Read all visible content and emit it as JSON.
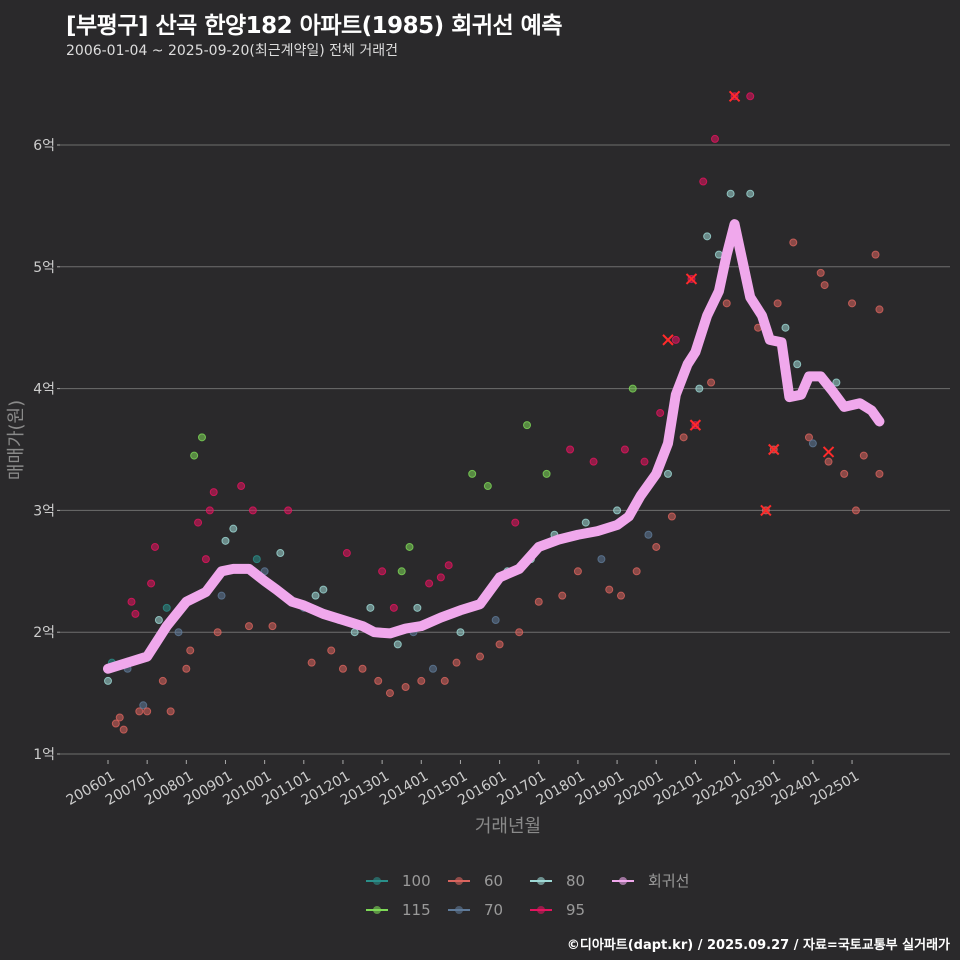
{
  "header": {
    "title": "[부평구] 산곡 한양182 아파트(1985) 회귀선 예측",
    "subtitle": "2006-01-04 ~ 2025-09-20(최근계약일) 전체 거래건"
  },
  "footer": "©디아파트(dapt.kr) / 2025.09.27 / 자료=국토교통부 실거래가",
  "chart_data": {
    "type": "scatter",
    "title": "[부평구] 산곡 한양182 아파트(1985) 회귀선 예측",
    "xlabel": "거래년월",
    "ylabel": "매매가(원)",
    "ylim": [
      1,
      6.6
    ],
    "xlim": [
      2005.6,
      2027.4
    ],
    "yticks": [
      {
        "v": 1,
        "label": "1억"
      },
      {
        "v": 2,
        "label": "2억"
      },
      {
        "v": 3,
        "label": "3억"
      },
      {
        "v": 4,
        "label": "4억"
      },
      {
        "v": 5,
        "label": "5억"
      },
      {
        "v": 6,
        "label": "6억"
      }
    ],
    "xticks": [
      "200601",
      "200701",
      "200801",
      "200901",
      "201001",
      "201101",
      "201201",
      "201301",
      "201401",
      "201501",
      "201601",
      "201701",
      "201801",
      "201901",
      "202001",
      "202101",
      "202201",
      "202301",
      "202401",
      "202501"
    ],
    "colors": {
      "100": "#2a8f8a",
      "115": "#7ed957",
      "60": "#d9645e",
      "70": "#5f7a99",
      "80": "#9ed9d6",
      "95": "#e3145f",
      "회귀선": "#f0a8ec"
    },
    "legend": [
      {
        "key": "100"
      },
      {
        "key": "60"
      },
      {
        "key": "80"
      },
      {
        "key": "회귀선"
      },
      {
        "key": "115"
      },
      {
        "key": "70"
      },
      {
        "key": "95"
      }
    ],
    "regression": [
      [
        2006.0,
        1.7
      ],
      [
        2006.5,
        1.75
      ],
      [
        2007.0,
        1.8
      ],
      [
        2007.2,
        1.9
      ],
      [
        2007.5,
        2.05
      ],
      [
        2008.0,
        2.25
      ],
      [
        2008.5,
        2.33
      ],
      [
        2008.9,
        2.5
      ],
      [
        2009.2,
        2.52
      ],
      [
        2009.6,
        2.52
      ],
      [
        2010.0,
        2.42
      ],
      [
        2010.3,
        2.35
      ],
      [
        2010.7,
        2.25
      ],
      [
        2011.0,
        2.22
      ],
      [
        2011.5,
        2.15
      ],
      [
        2012.0,
        2.1
      ],
      [
        2012.5,
        2.05
      ],
      [
        2012.8,
        2.0
      ],
      [
        2013.2,
        1.99
      ],
      [
        2013.6,
        2.03
      ],
      [
        2014.0,
        2.05
      ],
      [
        2014.5,
        2.12
      ],
      [
        2015.0,
        2.18
      ],
      [
        2015.5,
        2.23
      ],
      [
        2016.0,
        2.45
      ],
      [
        2016.5,
        2.52
      ],
      [
        2017.0,
        2.7
      ],
      [
        2017.5,
        2.76
      ],
      [
        2018.0,
        2.8
      ],
      [
        2018.5,
        2.83
      ],
      [
        2019.0,
        2.88
      ],
      [
        2019.3,
        2.95
      ],
      [
        2019.6,
        3.12
      ],
      [
        2020.0,
        3.3
      ],
      [
        2020.3,
        3.55
      ],
      [
        2020.5,
        3.95
      ],
      [
        2020.8,
        4.2
      ],
      [
        2021.0,
        4.3
      ],
      [
        2021.3,
        4.6
      ],
      [
        2021.6,
        4.8
      ],
      [
        2021.8,
        5.1
      ],
      [
        2022.0,
        5.35
      ],
      [
        2022.2,
        5.05
      ],
      [
        2022.4,
        4.75
      ],
      [
        2022.7,
        4.6
      ],
      [
        2022.9,
        4.4
      ],
      [
        2023.2,
        4.38
      ],
      [
        2023.4,
        3.93
      ],
      [
        2023.7,
        3.95
      ],
      [
        2023.9,
        4.1
      ],
      [
        2024.2,
        4.1
      ],
      [
        2024.5,
        3.98
      ],
      [
        2024.8,
        3.85
      ],
      [
        2025.2,
        3.88
      ],
      [
        2025.5,
        3.82
      ],
      [
        2025.7,
        3.73
      ]
    ],
    "points": [
      [
        2006.0,
        1.6,
        "80"
      ],
      [
        2006.1,
        1.75,
        "100"
      ],
      [
        2006.2,
        1.25,
        "60"
      ],
      [
        2006.3,
        1.3,
        "60"
      ],
      [
        2006.4,
        1.2,
        "60"
      ],
      [
        2006.5,
        1.7,
        "70"
      ],
      [
        2006.6,
        2.25,
        "95"
      ],
      [
        2006.7,
        2.15,
        "95"
      ],
      [
        2006.8,
        1.35,
        "60"
      ],
      [
        2006.9,
        1.4,
        "70"
      ],
      [
        2007.0,
        1.35,
        "60"
      ],
      [
        2007.1,
        2.4,
        "95"
      ],
      [
        2007.2,
        2.7,
        "95"
      ],
      [
        2007.3,
        2.1,
        "80"
      ],
      [
        2007.4,
        1.6,
        "60"
      ],
      [
        2007.5,
        2.2,
        "100"
      ],
      [
        2007.6,
        1.35,
        "60"
      ],
      [
        2007.8,
        2.0,
        "70"
      ],
      [
        2007.9,
        2.2,
        "80"
      ],
      [
        2008.0,
        1.7,
        "60"
      ],
      [
        2008.1,
        1.85,
        "60"
      ],
      [
        2008.2,
        3.45,
        "115"
      ],
      [
        2008.3,
        2.9,
        "95"
      ],
      [
        2008.4,
        3.6,
        "115"
      ],
      [
        2008.5,
        2.6,
        "95"
      ],
      [
        2008.6,
        3.0,
        "95"
      ],
      [
        2008.7,
        3.15,
        "95"
      ],
      [
        2008.8,
        2.0,
        "60"
      ],
      [
        2008.9,
        2.3,
        "70"
      ],
      [
        2009.0,
        2.75,
        "80"
      ],
      [
        2009.2,
        2.85,
        "80"
      ],
      [
        2009.4,
        3.2,
        "95"
      ],
      [
        2009.6,
        2.05,
        "60"
      ],
      [
        2009.7,
        3.0,
        "95"
      ],
      [
        2009.8,
        2.6,
        "100"
      ],
      [
        2010.0,
        2.5,
        "70"
      ],
      [
        2010.2,
        2.05,
        "60"
      ],
      [
        2010.4,
        2.65,
        "80"
      ],
      [
        2010.6,
        3.0,
        "95"
      ],
      [
        2011.0,
        2.2,
        "70"
      ],
      [
        2011.2,
        1.75,
        "60"
      ],
      [
        2011.3,
        2.3,
        "80"
      ],
      [
        2011.5,
        2.35,
        "80"
      ],
      [
        2011.7,
        1.85,
        "60"
      ],
      [
        2011.9,
        2.1,
        "70"
      ],
      [
        2012.0,
        1.7,
        "60"
      ],
      [
        2012.1,
        2.65,
        "95"
      ],
      [
        2012.3,
        2.0,
        "80"
      ],
      [
        2012.5,
        1.7,
        "60"
      ],
      [
        2012.7,
        2.2,
        "80"
      ],
      [
        2012.9,
        1.6,
        "60"
      ],
      [
        2013.0,
        2.5,
        "95"
      ],
      [
        2013.2,
        1.5,
        "60"
      ],
      [
        2013.3,
        2.2,
        "95"
      ],
      [
        2013.4,
        1.9,
        "80"
      ],
      [
        2013.5,
        2.5,
        "115"
      ],
      [
        2013.6,
        1.55,
        "60"
      ],
      [
        2013.7,
        2.7,
        "115"
      ],
      [
        2013.8,
        2.0,
        "70"
      ],
      [
        2013.9,
        2.2,
        "80"
      ],
      [
        2014.0,
        1.6,
        "60"
      ],
      [
        2014.2,
        2.4,
        "95"
      ],
      [
        2014.3,
        1.7,
        "70"
      ],
      [
        2014.5,
        2.45,
        "95"
      ],
      [
        2014.6,
        1.6,
        "60"
      ],
      [
        2014.7,
        2.55,
        "95"
      ],
      [
        2014.9,
        1.75,
        "60"
      ],
      [
        2015.0,
        2.0,
        "80"
      ],
      [
        2015.2,
        2.2,
        "80"
      ],
      [
        2015.3,
        3.3,
        "115"
      ],
      [
        2015.5,
        1.8,
        "60"
      ],
      [
        2015.7,
        3.2,
        "115"
      ],
      [
        2015.9,
        2.1,
        "70"
      ],
      [
        2016.0,
        1.9,
        "60"
      ],
      [
        2016.2,
        2.5,
        "80"
      ],
      [
        2016.4,
        2.9,
        "95"
      ],
      [
        2016.5,
        2.0,
        "60"
      ],
      [
        2016.7,
        3.7,
        "115"
      ],
      [
        2016.8,
        2.6,
        "80"
      ],
      [
        2017.0,
        2.25,
        "60"
      ],
      [
        2017.2,
        3.3,
        "115"
      ],
      [
        2017.4,
        2.8,
        "80"
      ],
      [
        2017.6,
        2.3,
        "60"
      ],
      [
        2017.8,
        3.5,
        "95"
      ],
      [
        2018.0,
        2.5,
        "60"
      ],
      [
        2018.2,
        2.9,
        "80"
      ],
      [
        2018.4,
        3.4,
        "95"
      ],
      [
        2018.6,
        2.6,
        "70"
      ],
      [
        2018.8,
        2.35,
        "60"
      ],
      [
        2019.0,
        3.0,
        "80"
      ],
      [
        2019.1,
        2.3,
        "60"
      ],
      [
        2019.2,
        3.5,
        "95"
      ],
      [
        2019.4,
        4.0,
        "115"
      ],
      [
        2019.5,
        2.5,
        "60"
      ],
      [
        2019.7,
        3.4,
        "95"
      ],
      [
        2019.8,
        2.8,
        "70"
      ],
      [
        2020.0,
        2.7,
        "60"
      ],
      [
        2020.1,
        3.8,
        "95"
      ],
      [
        2020.3,
        3.3,
        "80"
      ],
      [
        2020.4,
        2.95,
        "60"
      ],
      [
        2020.5,
        4.4,
        "95"
      ],
      [
        2020.7,
        3.6,
        "60"
      ],
      [
        2020.9,
        4.9,
        "95"
      ],
      [
        2021.0,
        3.7,
        "95"
      ],
      [
        2021.1,
        4.0,
        "80"
      ],
      [
        2021.2,
        5.7,
        "95"
      ],
      [
        2021.3,
        5.25,
        "80"
      ],
      [
        2021.4,
        4.05,
        "60"
      ],
      [
        2021.5,
        6.05,
        "95"
      ],
      [
        2021.6,
        5.1,
        "80"
      ],
      [
        2021.8,
        4.7,
        "60"
      ],
      [
        2021.9,
        5.6,
        "80"
      ],
      [
        2022.0,
        6.4,
        "95"
      ],
      [
        2022.4,
        6.4,
        "95"
      ],
      [
        2022.4,
        5.6,
        "80"
      ],
      [
        2022.6,
        4.5,
        "60"
      ],
      [
        2022.8,
        3.0,
        "60"
      ],
      [
        2023.0,
        3.5,
        "60"
      ],
      [
        2023.1,
        4.7,
        "60"
      ],
      [
        2023.3,
        4.5,
        "80"
      ],
      [
        2023.5,
        5.2,
        "60"
      ],
      [
        2023.6,
        4.2,
        "80"
      ],
      [
        2023.9,
        3.6,
        "60"
      ],
      [
        2024.0,
        3.55,
        "70"
      ],
      [
        2024.2,
        4.95,
        "60"
      ],
      [
        2024.3,
        4.85,
        "60"
      ],
      [
        2024.4,
        3.4,
        "60"
      ],
      [
        2024.6,
        4.05,
        "80"
      ],
      [
        2024.8,
        3.3,
        "60"
      ],
      [
        2025.0,
        4.7,
        "60"
      ],
      [
        2025.1,
        3.0,
        "60"
      ],
      [
        2025.3,
        3.45,
        "60"
      ],
      [
        2025.6,
        5.1,
        "60"
      ],
      [
        2025.7,
        4.65,
        "60"
      ],
      [
        2025.7,
        3.3,
        "60"
      ]
    ],
    "highlighted": [
      [
        2020.3,
        4.4
      ],
      [
        2020.9,
        4.9
      ],
      [
        2021.0,
        3.7
      ],
      [
        2022.0,
        6.4
      ],
      [
        2022.8,
        3.0
      ],
      [
        2023.0,
        3.5
      ],
      [
        2024.4,
        3.48
      ]
    ]
  }
}
